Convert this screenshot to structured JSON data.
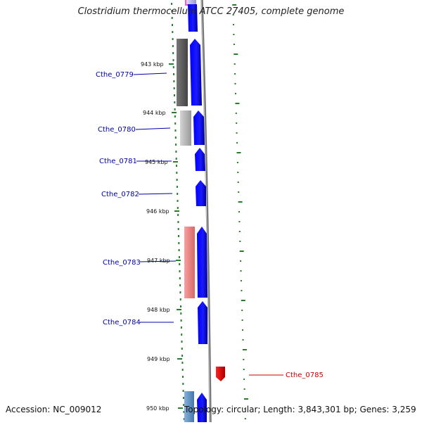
{
  "title": "Clostridium thermocellum ATCC 27405, complete genome",
  "footer": {
    "accession": "Accession: NC_009012",
    "topology": "Topology: circular; Length: 3,843,301 bp; Genes: 3,259"
  },
  "colors": {
    "forward_gene": "#0000ee",
    "highlight_gene": "#ee1111",
    "label_blue": "#0000aa",
    "label_red": "#cc0000",
    "tick_green": "#2a7d2a",
    "backbone": "#888888",
    "cog_dark": "#555555",
    "cog_light": "#bbbbbb",
    "cog_pink": "#ee8888",
    "cog_steelblue": "#6699cc",
    "cog_magenta": "#dd44aa"
  },
  "kbp_ticks": [
    "943 kbp",
    "944 kbp",
    "945 kbp",
    "946 kbp",
    "947 kbp",
    "948 kbp",
    "949 kbp",
    "950 kbp"
  ],
  "gene_labels": [
    "Cthe_0779",
    "Cthe_0780",
    "Cthe_0781",
    "Cthe_0782",
    "Cthe_0783",
    "Cthe_0784",
    "Cthe_0785"
  ]
}
